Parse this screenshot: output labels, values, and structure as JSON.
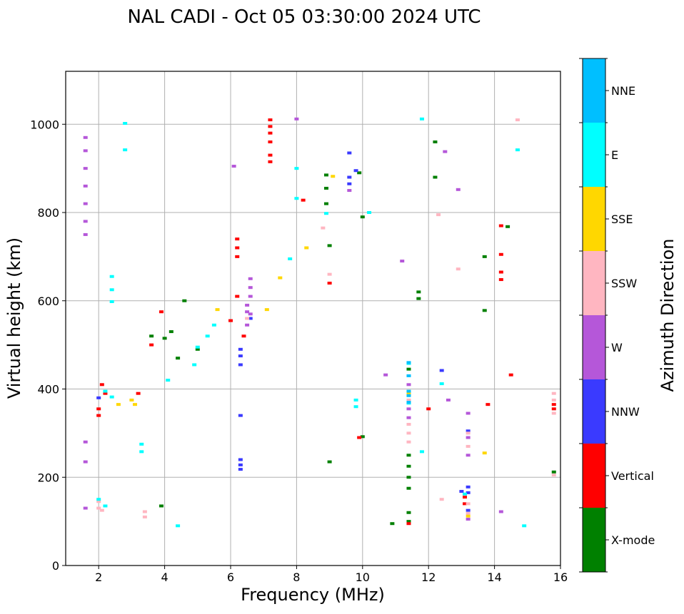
{
  "chart_data": {
    "type": "scatter",
    "title": "NAL CADI - Oct 05 03:30:00 2024 UTC",
    "xlabel": "Frequency (MHz)",
    "ylabel": "Virtual height (km)",
    "xlim": [
      1,
      16
    ],
    "ylim": [
      0,
      1120
    ],
    "xticks": [
      2,
      4,
      6,
      8,
      10,
      12,
      14,
      16
    ],
    "yticks": [
      0,
      200,
      400,
      600,
      800,
      1000
    ],
    "grid": true,
    "colorbar": {
      "label": "Azimuth Direction",
      "categories": [
        {
          "name": "X-mode",
          "color": "#008000"
        },
        {
          "name": "Vertical",
          "color": "#ff0000"
        },
        {
          "name": "NNW",
          "color": "#3a3aff"
        },
        {
          "name": "W",
          "color": "#b557d9"
        },
        {
          "name": "SSW",
          "color": "#ffb6c1"
        },
        {
          "name": "SSE",
          "color": "#ffd700"
        },
        {
          "name": "E",
          "color": "#00ffff"
        },
        {
          "name": "NNE",
          "color": "#00bfff"
        }
      ]
    },
    "series": [
      {
        "name": "X-mode",
        "points": [
          [
            3.9,
            135
          ],
          [
            4.4,
            470
          ],
          [
            4.6,
            600
          ],
          [
            4.0,
            515
          ],
          [
            4.2,
            530
          ],
          [
            3.6,
            520
          ],
          [
            5.0,
            490
          ],
          [
            8.9,
            885
          ],
          [
            8.9,
            855
          ],
          [
            8.9,
            820
          ],
          [
            9.0,
            725
          ],
          [
            9.0,
            235
          ],
          [
            9.9,
            890
          ],
          [
            10.0,
            790
          ],
          [
            10.0,
            292
          ],
          [
            10.9,
            95
          ],
          [
            11.4,
            250
          ],
          [
            11.4,
            225
          ],
          [
            11.4,
            200
          ],
          [
            11.4,
            175
          ],
          [
            11.4,
            120
          ],
          [
            11.4,
            100
          ],
          [
            11.4,
            445
          ],
          [
            11.7,
            620
          ],
          [
            11.7,
            605
          ],
          [
            12.2,
            960
          ],
          [
            12.2,
            880
          ],
          [
            13.7,
            700
          ],
          [
            13.7,
            578
          ],
          [
            14.4,
            768
          ],
          [
            15.8,
            212
          ]
        ]
      },
      {
        "name": "Vertical",
        "points": [
          [
            2.0,
            340
          ],
          [
            2.0,
            355
          ],
          [
            2.1,
            410
          ],
          [
            2.2,
            390
          ],
          [
            3.2,
            390
          ],
          [
            3.6,
            500
          ],
          [
            3.9,
            575
          ],
          [
            6.0,
            555
          ],
          [
            6.2,
            740
          ],
          [
            6.2,
            720
          ],
          [
            6.2,
            700
          ],
          [
            6.2,
            610
          ],
          [
            6.4,
            520
          ],
          [
            7.2,
            1010
          ],
          [
            7.2,
            995
          ],
          [
            7.2,
            980
          ],
          [
            7.2,
            960
          ],
          [
            7.2,
            930
          ],
          [
            7.2,
            915
          ],
          [
            8.2,
            828
          ],
          [
            9.0,
            640
          ],
          [
            9.9,
            290
          ],
          [
            11.4,
            95
          ],
          [
            12.0,
            355
          ],
          [
            13.1,
            155
          ],
          [
            13.1,
            140
          ],
          [
            13.8,
            365
          ],
          [
            14.2,
            770
          ],
          [
            14.2,
            705
          ],
          [
            14.2,
            665
          ],
          [
            14.2,
            648
          ],
          [
            14.5,
            432
          ],
          [
            15.8,
            365
          ],
          [
            15.8,
            355
          ]
        ]
      },
      {
        "name": "NNW",
        "points": [
          [
            2.0,
            380
          ],
          [
            6.3,
            490
          ],
          [
            6.3,
            475
          ],
          [
            6.3,
            455
          ],
          [
            6.3,
            340
          ],
          [
            6.3,
            240
          ],
          [
            6.3,
            228
          ],
          [
            6.3,
            218
          ],
          [
            6.6,
            560
          ],
          [
            9.6,
            935
          ],
          [
            9.6,
            880
          ],
          [
            9.6,
            865
          ],
          [
            9.8,
            895
          ],
          [
            12.4,
            442
          ],
          [
            13.0,
            168
          ],
          [
            13.2,
            305
          ],
          [
            13.2,
            178
          ],
          [
            13.2,
            165
          ],
          [
            13.2,
            125
          ]
        ]
      },
      {
        "name": "W",
        "points": [
          [
            1.6,
            970
          ],
          [
            1.6,
            940
          ],
          [
            1.6,
            900
          ],
          [
            1.6,
            860
          ],
          [
            1.6,
            820
          ],
          [
            1.6,
            780
          ],
          [
            1.6,
            750
          ],
          [
            1.6,
            280
          ],
          [
            1.6,
            235
          ],
          [
            1.6,
            130
          ],
          [
            6.5,
            590
          ],
          [
            6.5,
            575
          ],
          [
            6.5,
            545
          ],
          [
            6.6,
            650
          ],
          [
            6.6,
            630
          ],
          [
            6.6,
            610
          ],
          [
            6.6,
            570
          ],
          [
            6.1,
            905
          ],
          [
            8.0,
            1012
          ],
          [
            9.6,
            850
          ],
          [
            10.7,
            432
          ],
          [
            11.4,
            410
          ],
          [
            11.4,
            355
          ],
          [
            11.4,
            335
          ],
          [
            11.2,
            690
          ],
          [
            12.5,
            938
          ],
          [
            12.6,
            375
          ],
          [
            13.2,
            345
          ],
          [
            13.2,
            290
          ],
          [
            13.2,
            250
          ],
          [
            13.2,
            105
          ],
          [
            14.2,
            122
          ],
          [
            12.9,
            852
          ]
        ]
      },
      {
        "name": "SSW",
        "points": [
          [
            2.0,
            130
          ],
          [
            2.0,
            145
          ],
          [
            2.1,
            125
          ],
          [
            3.4,
            122
          ],
          [
            3.4,
            110
          ],
          [
            6.5,
            560
          ],
          [
            8.8,
            765
          ],
          [
            9.0,
            660
          ],
          [
            11.4,
            375
          ],
          [
            11.4,
            320
          ],
          [
            11.4,
            300
          ],
          [
            11.4,
            280
          ],
          [
            12.3,
            795
          ],
          [
            12.4,
            150
          ],
          [
            12.9,
            672
          ],
          [
            13.2,
            300
          ],
          [
            13.2,
            270
          ],
          [
            13.2,
            140
          ],
          [
            13.2,
            118
          ],
          [
            14.7,
            1010
          ],
          [
            15.8,
            390
          ],
          [
            15.8,
            375
          ],
          [
            15.8,
            345
          ],
          [
            15.8,
            205
          ]
        ]
      },
      {
        "name": "SSE",
        "points": [
          [
            3.0,
            375
          ],
          [
            3.1,
            365
          ],
          [
            2.6,
            365
          ],
          [
            5.6,
            580
          ],
          [
            7.1,
            580
          ],
          [
            7.5,
            652
          ],
          [
            8.3,
            720
          ],
          [
            9.1,
            882
          ],
          [
            11.4,
            390
          ],
          [
            13.2,
            112
          ],
          [
            13.7,
            255
          ]
        ]
      },
      {
        "name": "E",
        "points": [
          [
            2.4,
            655
          ],
          [
            2.4,
            625
          ],
          [
            2.4,
            598
          ],
          [
            2.8,
            1002
          ],
          [
            2.8,
            942
          ],
          [
            2.2,
            395
          ],
          [
            2.4,
            382
          ],
          [
            3.3,
            275
          ],
          [
            3.3,
            258
          ],
          [
            4.1,
            420
          ],
          [
            4.4,
            90
          ],
          [
            4.9,
            455
          ],
          [
            5.3,
            520
          ],
          [
            5.5,
            545
          ],
          [
            5.0,
            495
          ],
          [
            8.0,
            900
          ],
          [
            7.8,
            695
          ],
          [
            8.0,
            832
          ],
          [
            8.9,
            798
          ],
          [
            9.8,
            375
          ],
          [
            9.8,
            360
          ],
          [
            10.2,
            800
          ],
          [
            11.4,
            458
          ],
          [
            11.4,
            368
          ],
          [
            11.8,
            258
          ],
          [
            11.8,
            1012
          ],
          [
            12.4,
            412
          ],
          [
            13.1,
            162
          ],
          [
            14.7,
            942
          ],
          [
            14.9,
            90
          ],
          [
            2.0,
            150
          ],
          [
            2.2,
            135
          ]
        ]
      },
      {
        "name": "NNE",
        "points": [
          [
            11.4,
            395
          ],
          [
            11.4,
            385
          ],
          [
            11.4,
            370
          ],
          [
            11.4,
            430
          ],
          [
            11.4,
            460
          ]
        ]
      }
    ]
  }
}
